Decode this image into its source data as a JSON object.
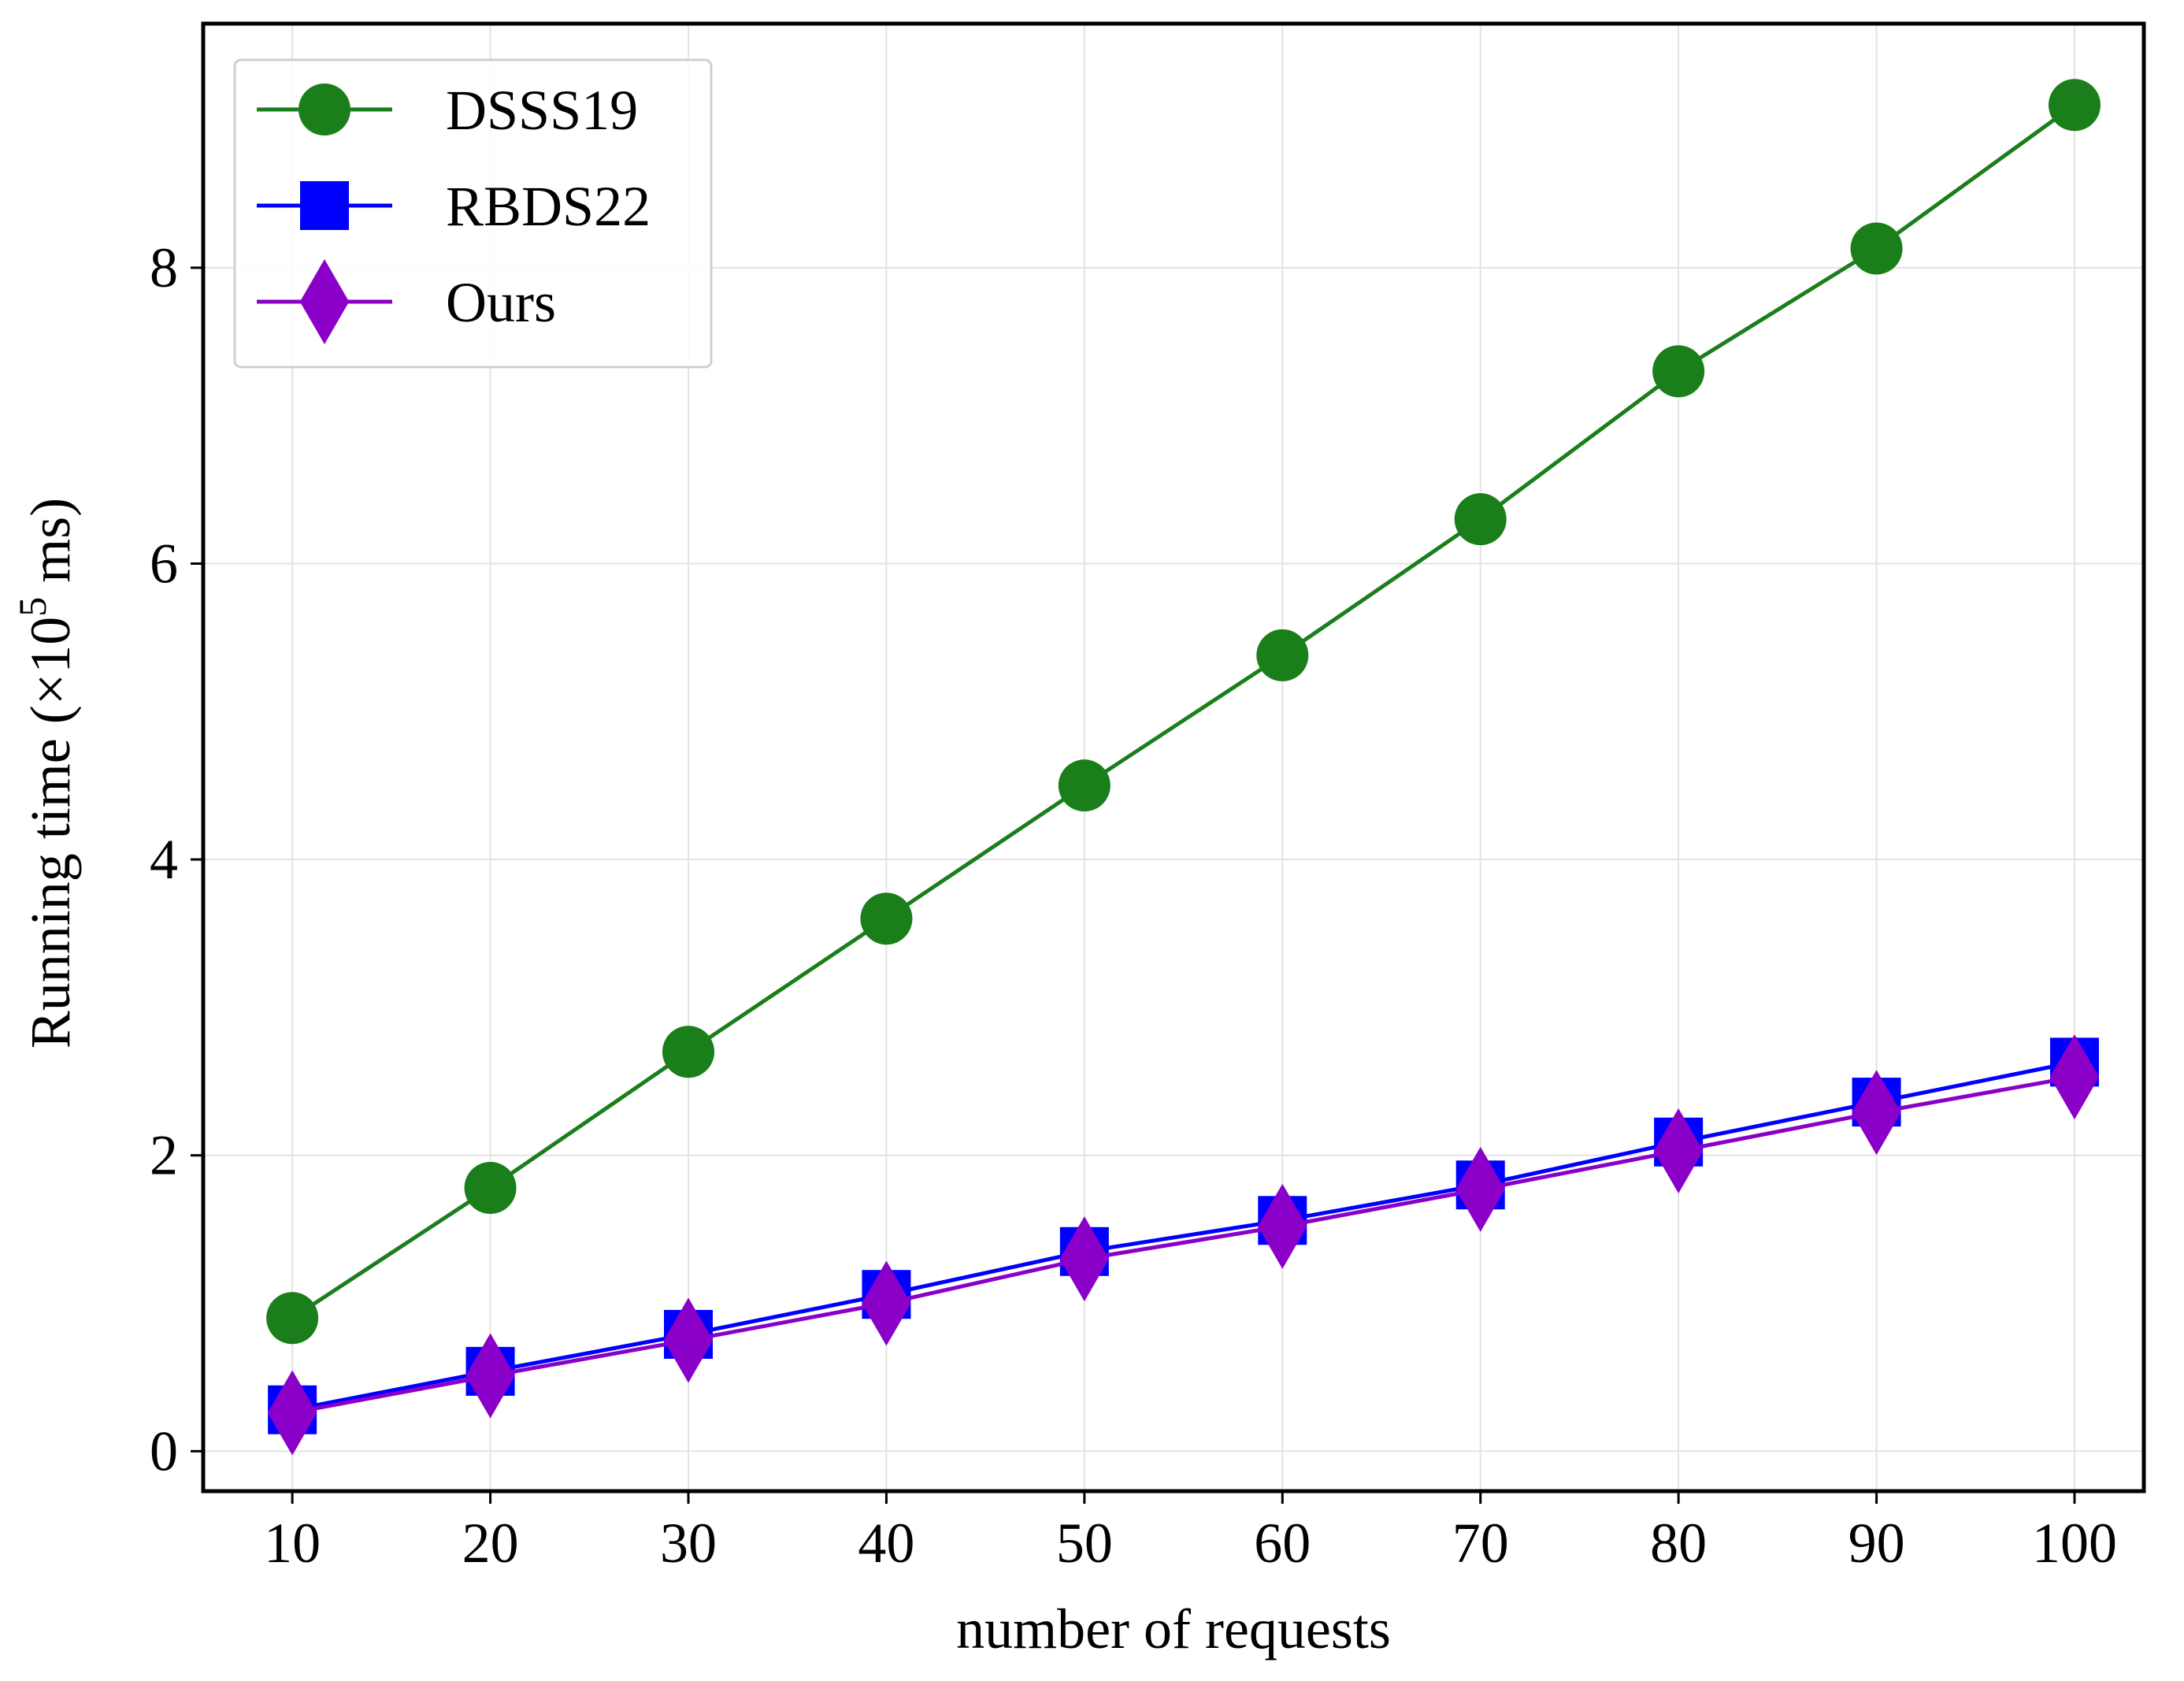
{
  "chart_data": {
    "type": "line",
    "title": "",
    "xlabel": "number of requests",
    "ylabel_prefix": "Running time (×10",
    "ylabel_exponent": "5",
    "ylabel_suffix": " ms)",
    "x": [
      10,
      20,
      30,
      40,
      50,
      60,
      70,
      80,
      90,
      100
    ],
    "x_tick_labels": [
      "10",
      "20",
      "30",
      "40",
      "50",
      "60",
      "70",
      "80",
      "90",
      "100"
    ],
    "y_ticks": [
      0,
      2,
      4,
      6,
      8
    ],
    "y_tick_labels": [
      "0",
      "2",
      "4",
      "6",
      "8"
    ],
    "xlim": [
      5.5,
      103.5
    ],
    "ylim": [
      -0.27,
      9.65
    ],
    "grid": true,
    "legend_position": "top-left",
    "series": [
      {
        "name": "DSSS19",
        "color": "#1a7f1a",
        "marker": "circle",
        "values": [
          0.9,
          1.78,
          2.7,
          3.6,
          4.5,
          5.38,
          6.3,
          7.3,
          8.13,
          9.1
        ]
      },
      {
        "name": "RBDS22",
        "color": "#0000ff",
        "marker": "square",
        "values": [
          0.28,
          0.54,
          0.79,
          1.06,
          1.35,
          1.56,
          1.8,
          2.09,
          2.36,
          2.63
        ]
      },
      {
        "name": "Ours",
        "color": "#8a00c8",
        "marker": "diamond",
        "values": [
          0.26,
          0.51,
          0.75,
          1.0,
          1.3,
          1.52,
          1.77,
          2.03,
          2.29,
          2.53
        ]
      }
    ]
  }
}
